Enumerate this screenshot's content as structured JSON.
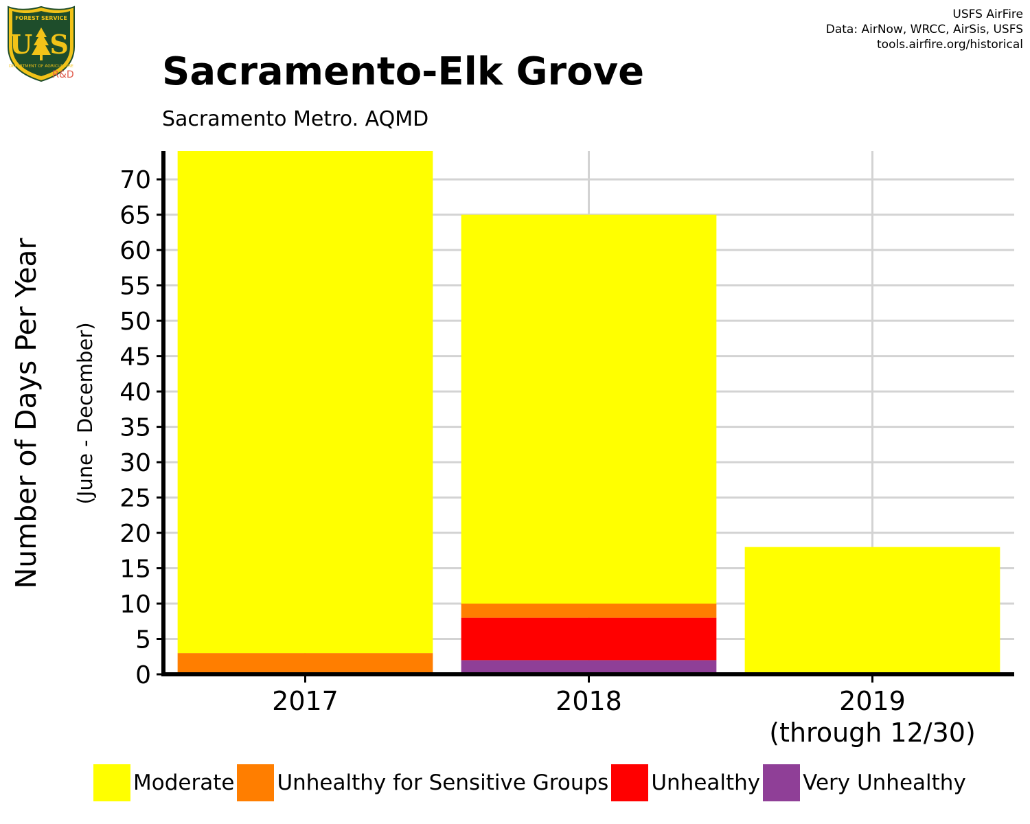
{
  "logo": {
    "top_text": "FOREST SERVICE",
    "letters": "U S",
    "bottom_text": "DEPARTMENT OF AGRICULTURE",
    "tag": "R&D"
  },
  "credits": {
    "line1": "USFS AirFire",
    "line2": "Data: AirNow, WRCC, AirSis, USFS",
    "line3": "tools.airfire.org/historical"
  },
  "colors": {
    "moderate": "#FFFF00",
    "usg": "#FF7E00",
    "unhealthy": "#FF0000",
    "very_unhealthy": "#8F3F97",
    "grid": "#D3D3D3",
    "logo_green": "#1E4D2B",
    "logo_gold": "#F2C318",
    "tag": "#E05A4A"
  },
  "chart_data": {
    "type": "bar",
    "stacked": true,
    "title": "Sacramento-Elk Grove",
    "subtitle": "Sacramento Metro. AQMD",
    "ylabel": "Number of Days Per Year",
    "ylabel_sub": "(June - December)",
    "xlabel": "",
    "categories": [
      "2017",
      "2018",
      "2019"
    ],
    "category_sublabels": [
      "",
      "",
      "(through 12/30)"
    ],
    "ylim": [
      0,
      74
    ],
    "yticks": [
      0,
      5,
      10,
      15,
      20,
      25,
      30,
      35,
      40,
      45,
      50,
      55,
      60,
      65,
      70
    ],
    "grid": true,
    "legend_position": "bottom",
    "series": [
      {
        "name": "Very Unhealthy",
        "color": "#8F3F97",
        "values": [
          0,
          2,
          0
        ]
      },
      {
        "name": "Unhealthy",
        "color": "#FF0000",
        "values": [
          0,
          6,
          0
        ]
      },
      {
        "name": "Unhealthy for Sensitive Groups",
        "color": "#FF7E00",
        "values": [
          3,
          2,
          0
        ]
      },
      {
        "name": "Moderate",
        "color": "#FFFF00",
        "values": [
          71,
          55,
          18
        ]
      }
    ],
    "legend_order": [
      "Moderate",
      "Unhealthy for Sensitive Groups",
      "Unhealthy",
      "Very Unhealthy"
    ]
  }
}
